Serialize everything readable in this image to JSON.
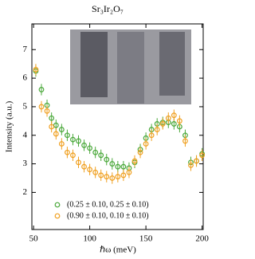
{
  "chart_data": {
    "type": "scatter",
    "title": "Sr₃Ir₂O₇",
    "xlabel": "ℏω (meV)",
    "ylabel": "Intensity (a.u.)",
    "x": [
      52,
      57,
      62,
      66,
      70,
      75,
      80,
      85,
      90,
      95,
      100,
      105,
      110,
      115,
      120,
      125,
      130,
      135,
      140,
      145,
      150,
      155,
      160,
      165,
      170,
      175,
      180,
      185,
      190,
      195,
      200
    ],
    "series": [
      {
        "name": "(0.25 ± 0.10, 0.25 ± 0.10)",
        "color": "#4aa83a",
        "error": 0.2,
        "values": [
          6.25,
          5.6,
          5.05,
          4.6,
          4.35,
          4.2,
          4.0,
          3.85,
          3.8,
          3.65,
          3.55,
          3.4,
          3.3,
          3.15,
          3.0,
          2.9,
          2.9,
          2.85,
          3.05,
          3.5,
          3.9,
          4.2,
          4.4,
          4.45,
          4.45,
          4.4,
          4.3,
          4.0,
          3.05,
          3.1,
          3.35
        ]
      },
      {
        "name": "(0.90 ± 0.10, 0.10 ± 0.10)",
        "color": "#f0a020",
        "error": 0.2,
        "values": [
          6.3,
          5.0,
          4.85,
          4.3,
          4.05,
          3.7,
          3.4,
          3.3,
          3.05,
          2.9,
          2.8,
          2.7,
          2.6,
          2.55,
          2.5,
          2.55,
          2.6,
          2.7,
          3.1,
          3.4,
          3.7,
          4.0,
          4.2,
          4.4,
          4.6,
          4.7,
          4.5,
          3.8,
          2.95,
          3.1,
          3.3
        ]
      }
    ],
    "xlim": [
      48.5,
      201
    ],
    "ylim": [
      0.7,
      7.9
    ],
    "xticks": [
      50,
      100,
      150,
      200
    ],
    "yticks": [
      2,
      3,
      4,
      5,
      6,
      7
    ],
    "legend": "lower left"
  }
}
